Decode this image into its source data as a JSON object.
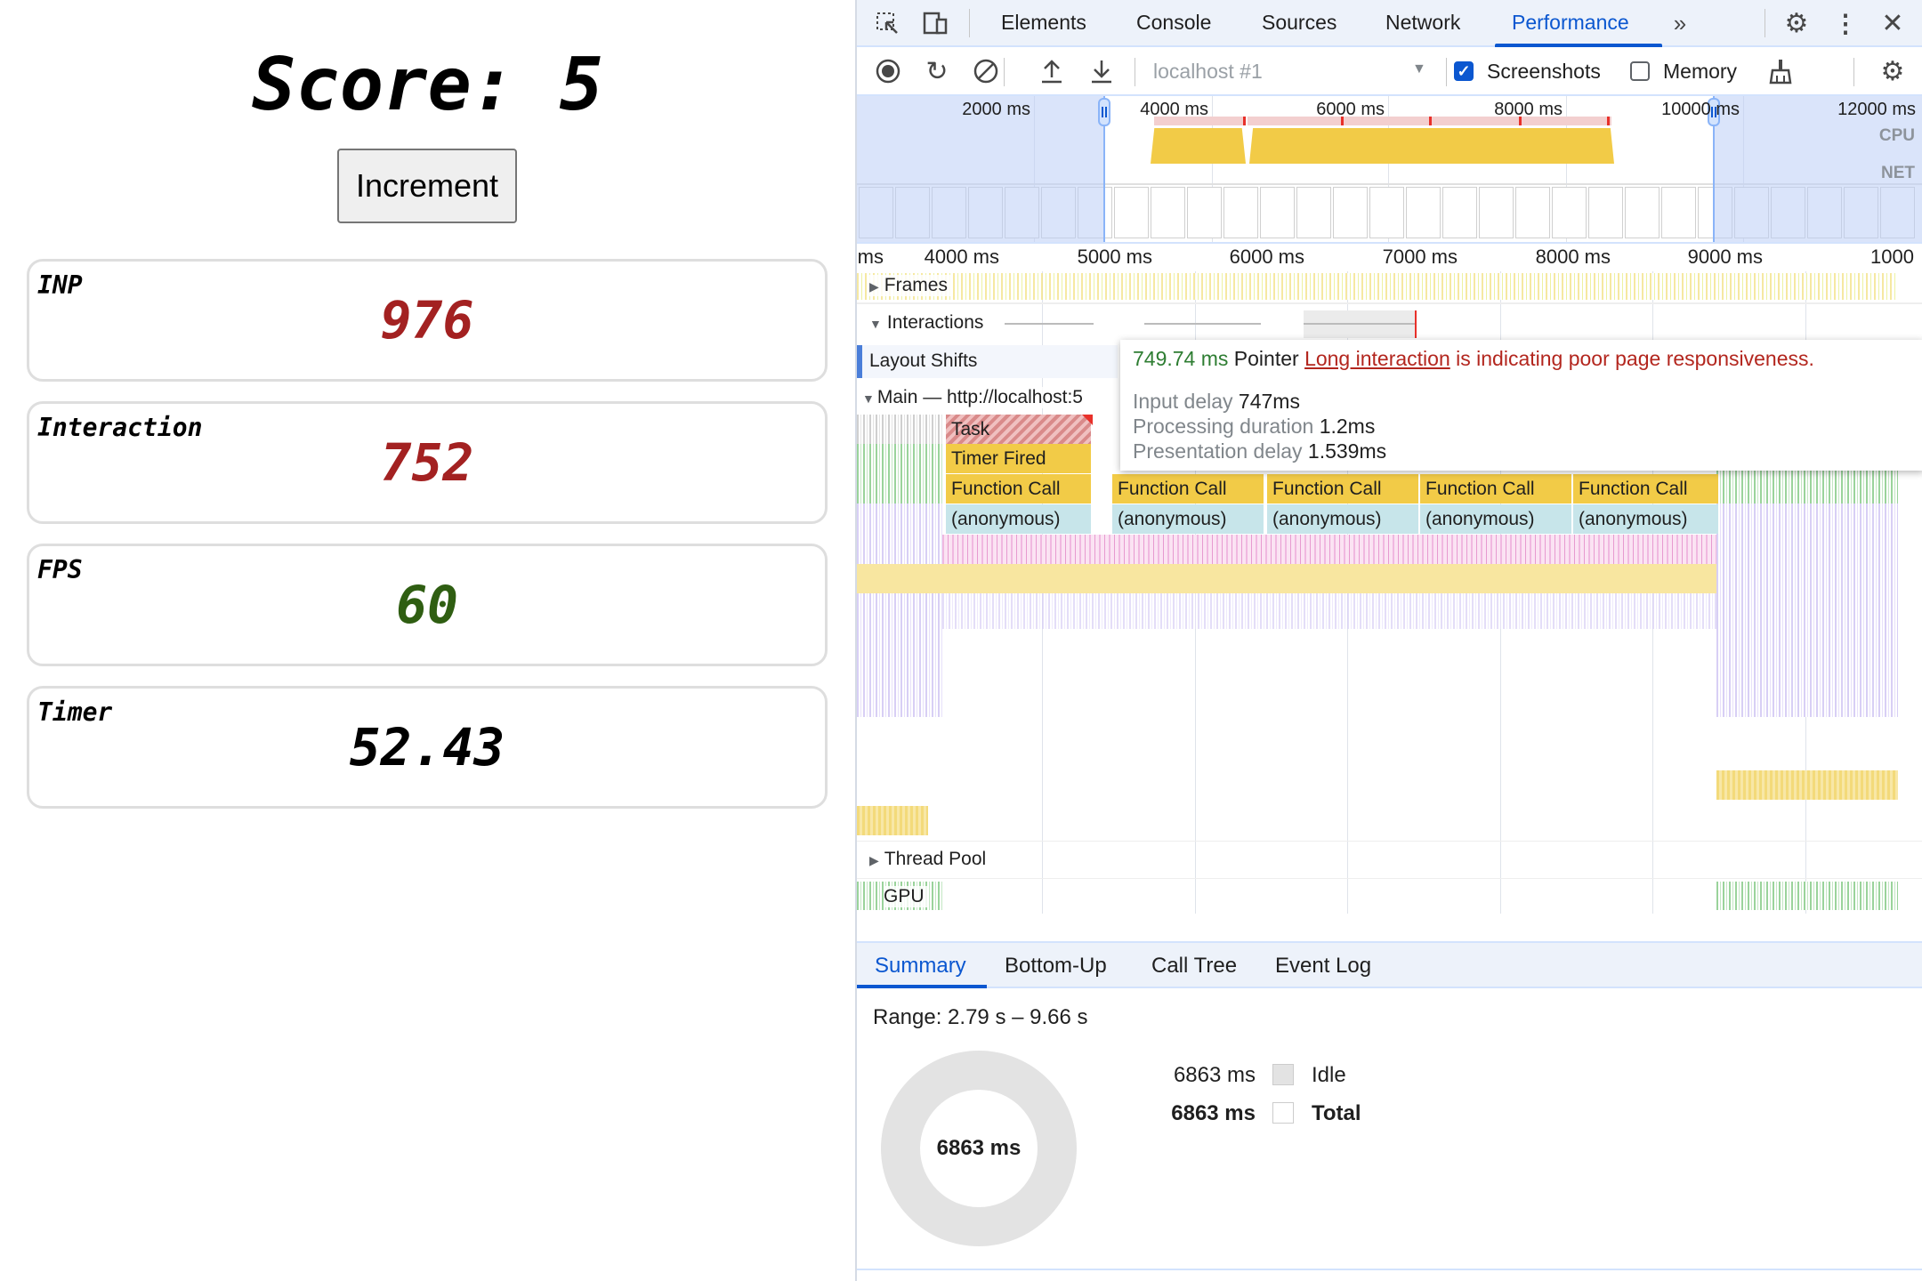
{
  "app": {
    "score_label": "Score: 5",
    "increment_button": "Increment",
    "cards": [
      {
        "label": "INP",
        "value": "976",
        "color": "#a32121"
      },
      {
        "label": "Interaction",
        "value": "752",
        "color": "#a32121"
      },
      {
        "label": "FPS",
        "value": "60",
        "color": "#2f5e12"
      },
      {
        "label": "Timer",
        "value": "52.43",
        "color": "#000000"
      }
    ]
  },
  "devtools": {
    "tabs": [
      {
        "label": "Elements"
      },
      {
        "label": "Console"
      },
      {
        "label": "Sources"
      },
      {
        "label": "Network"
      },
      {
        "label": "Performance",
        "active": true
      }
    ],
    "more_tabs_icon": "chevron-double-right-icon",
    "toolbar": {
      "recording_select": "localhost #1",
      "screenshots_label": "Screenshots",
      "screenshots_checked": true,
      "memory_label": "Memory",
      "memory_checked": false
    },
    "overview": {
      "ruler_labels": [
        "2000 ms",
        "4000 ms",
        "6000 ms",
        "8000 ms",
        "10000 ms",
        "12000 ms"
      ],
      "cpu_label": "CPU",
      "net_label": "NET"
    },
    "time_ruler": [
      "ms",
      "4000 ms",
      "5000 ms",
      "6000 ms",
      "7000 ms",
      "8000 ms",
      "9000 ms",
      "1000"
    ],
    "tracks": {
      "frames": "Frames",
      "interactions": "Interactions",
      "layout_shifts": "Layout Shifts",
      "main": "Main — http://localhost:5",
      "thread_pool": "Thread Pool",
      "gpu": "GPU"
    },
    "flame": {
      "task": "Task",
      "timer_fired": "Timer Fired",
      "function_call": "Function Call",
      "anonymous": "(anonymous)"
    },
    "tooltip": {
      "duration": "749.74 ms",
      "type": "Pointer",
      "link": "Long interaction",
      "message": " is indicating poor page responsiveness.",
      "input_delay_label": "Input delay",
      "input_delay": "747ms",
      "processing_label": "Processing duration",
      "processing": "1.2ms",
      "presentation_label": "Presentation delay",
      "presentation": "1.539ms"
    },
    "bottom_tabs": [
      {
        "label": "Summary",
        "active": true
      },
      {
        "label": "Bottom-Up"
      },
      {
        "label": "Call Tree"
      },
      {
        "label": "Event Log"
      }
    ],
    "summary": {
      "range": "Range: 2.79 s – 9.66 s",
      "donut_total": "6863 ms",
      "legend": [
        {
          "value": "6863 ms",
          "label": "Idle",
          "color": "#e3e3e3"
        },
        {
          "value": "6863 ms",
          "label": "Total",
          "color": "#ffffff"
        }
      ]
    }
  }
}
